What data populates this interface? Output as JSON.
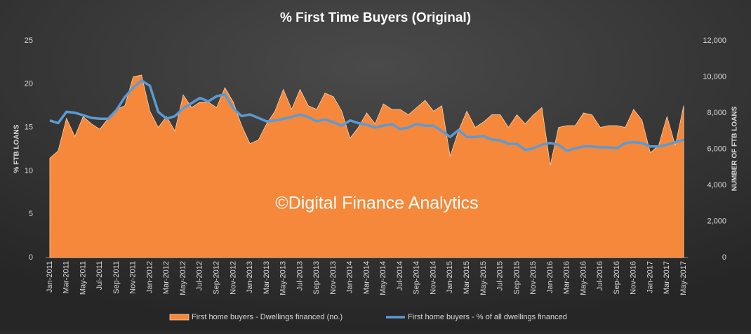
{
  "chart_data": {
    "type": "area-line",
    "title": "% First Time Buyers (Original)",
    "y_label": "% FTB LOANS",
    "y2_label": "NUMBER OF FTB LOANS",
    "annotation": "©Digital Finance Analytics",
    "categories": [
      "Jan-2011",
      null,
      "Mar-2011",
      null,
      "May-2011",
      null,
      "Jul-2011",
      null,
      "Sep-2011",
      null,
      "Nov-2011",
      null,
      "Jan-2012",
      null,
      "Mar-2012",
      null,
      "May-2012",
      null,
      "Jul-2012",
      null,
      "Sep-2012",
      null,
      "Nov-2012",
      null,
      "Jan-2013",
      null,
      "Mar-2013",
      null,
      "May-2013",
      null,
      "Jul-2013",
      null,
      "Sep-2013",
      null,
      "Nov-2013",
      null,
      "Jan-2014",
      null,
      "Mar-2014",
      null,
      "May-2014",
      null,
      "Jul-2014",
      null,
      "Sep-2014",
      null,
      "Nov-2014",
      null,
      "Jan-2015",
      null,
      "Mar-2015",
      null,
      "May-2015",
      null,
      "Jul-2015",
      null,
      "Sep-2015",
      null,
      "Nov-2015",
      null,
      "Jan-2016",
      null,
      "Mar-2016",
      null,
      "May-2016",
      null,
      "Jul-2016",
      null,
      "Sep-2016",
      null,
      "Nov-2016",
      null,
      "Jan-2017",
      null,
      "Mar-2017",
      null,
      "May-2017"
    ],
    "series": [
      {
        "name": "First home buyers - Dwellings financed (no.)",
        "color": "#f5883a",
        "axis": "y2",
        "kind": "area",
        "values": [
          5500,
          5900,
          7700,
          6700,
          7800,
          7400,
          7100,
          7700,
          8200,
          8400,
          10000,
          10100,
          8100,
          7200,
          7800,
          7000,
          9000,
          8300,
          8600,
          8600,
          8300,
          9400,
          8600,
          7300,
          6300,
          6500,
          7400,
          8100,
          9300,
          8200,
          9300,
          8400,
          8200,
          9100,
          8900,
          8100,
          6600,
          7200,
          8000,
          7400,
          8500,
          8200,
          8200,
          7900,
          8300,
          8700,
          8100,
          8400,
          5600,
          7000,
          8100,
          7200,
          7500,
          7900,
          7900,
          7200,
          7900,
          7400,
          7900,
          8300,
          5100,
          7200,
          7300,
          7300,
          8000,
          7900,
          7200,
          7300,
          7300,
          7200,
          8200,
          7600,
          5800,
          6200,
          7800,
          6200,
          8400
        ]
      },
      {
        "name": "First home buyers - % of all dwellings financed",
        "color": "#5b9bd5",
        "axis": "y",
        "kind": "line",
        "values": [
          15.8,
          15.5,
          16.8,
          16.7,
          16.4,
          16.1,
          16.0,
          16.0,
          17.0,
          18.5,
          19.6,
          20.4,
          19.8,
          16.8,
          16.0,
          16.3,
          17.2,
          17.8,
          18.4,
          18.0,
          18.6,
          18.8,
          17.2,
          16.3,
          16.5,
          16.1,
          15.7,
          15.8,
          16.0,
          16.2,
          16.5,
          16.2,
          15.7,
          15.9,
          15.6,
          15.2,
          15.8,
          15.5,
          15.3,
          15.0,
          15.2,
          15.4,
          14.8,
          15.0,
          15.4,
          15.2,
          15.2,
          14.6,
          13.9,
          14.7,
          13.9,
          13.9,
          14.0,
          13.6,
          13.5,
          13.1,
          13.1,
          12.4,
          12.6,
          13.0,
          13.2,
          13.0,
          12.3,
          12.6,
          12.8,
          12.8,
          12.7,
          12.7,
          12.6,
          13.2,
          13.3,
          13.2,
          12.8,
          12.8,
          13.0,
          13.3,
          13.6
        ]
      }
    ],
    "ylim": [
      0,
      25
    ],
    "yticks": [
      0,
      5,
      10,
      15,
      20,
      25
    ],
    "y2lim": [
      0,
      12000
    ],
    "y2ticks": [
      0,
      {
        "value": 2000,
        "label": "2,000"
      },
      {
        "value": 4000,
        "label": "4,000"
      },
      {
        "value": 6000,
        "label": "6,000"
      },
      {
        "value": 8000,
        "label": "8,000"
      },
      {
        "value": 10000,
        "label": "10,000"
      },
      {
        "value": 12000,
        "label": "12,000"
      }
    ],
    "grid": false,
    "legend": "bottom"
  }
}
